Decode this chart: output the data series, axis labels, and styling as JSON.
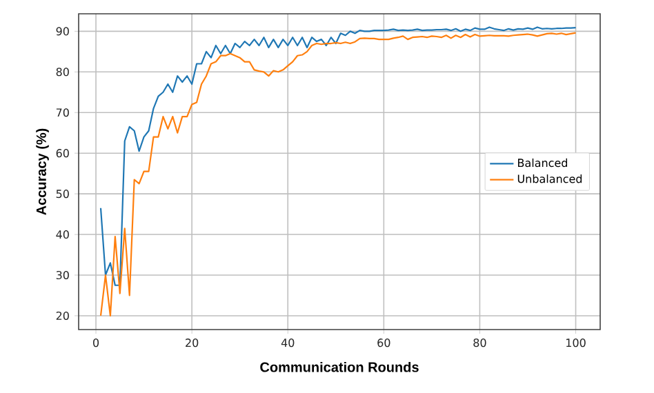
{
  "chart_data": {
    "type": "line",
    "xlabel": "Communication Rounds",
    "ylabel": "Accuracy (%)",
    "x": [
      1,
      2,
      3,
      4,
      5,
      6,
      7,
      8,
      9,
      10,
      11,
      12,
      13,
      14,
      15,
      16,
      17,
      18,
      19,
      20,
      21,
      22,
      23,
      24,
      25,
      26,
      27,
      28,
      29,
      30,
      31,
      32,
      33,
      34,
      35,
      36,
      37,
      38,
      39,
      40,
      41,
      42,
      43,
      44,
      45,
      46,
      47,
      48,
      49,
      50,
      51,
      52,
      53,
      54,
      55,
      56,
      57,
      58,
      59,
      60,
      61,
      62,
      63,
      64,
      65,
      66,
      67,
      68,
      69,
      70,
      71,
      72,
      73,
      74,
      75,
      76,
      77,
      78,
      79,
      80,
      81,
      82,
      83,
      84,
      85,
      86,
      87,
      88,
      89,
      90,
      91,
      92,
      93,
      94,
      95,
      96,
      97,
      98,
      99,
      100
    ],
    "series": [
      {
        "name": "Balanced",
        "color": "#1f77b4",
        "values": [
          46.5,
          30,
          33,
          27.5,
          27.5,
          63,
          66.5,
          65.5,
          60.5,
          64,
          65.5,
          71,
          74,
          75,
          77,
          75,
          79,
          77.5,
          79,
          77,
          82,
          82,
          85,
          83.5,
          86.5,
          84.5,
          86.5,
          84.5,
          87,
          86,
          87.5,
          86.5,
          88,
          86.5,
          88.5,
          86,
          88,
          86,
          88,
          86.5,
          88.5,
          86.5,
          88.5,
          86,
          88.5,
          87.5,
          88,
          86.5,
          88.5,
          87,
          89.5,
          89,
          90,
          89.5,
          90.2,
          90,
          90,
          90.2,
          90.2,
          90.2,
          90.3,
          90.5,
          90.2,
          90.3,
          90.2,
          90.3,
          90.5,
          90.2,
          90.3,
          90.3,
          90.4,
          90.4,
          90.5,
          90.2,
          90.6,
          90,
          90.5,
          90.2,
          90.8,
          90.5,
          90.5,
          91,
          90.6,
          90.4,
          90.2,
          90.6,
          90.3,
          90.6,
          90.5,
          90.8,
          90.5,
          91,
          90.6,
          90.7,
          90.6,
          90.7,
          90.7,
          90.8,
          90.8,
          90.9
        ]
      },
      {
        "name": "Unbalanced",
        "color": "#ff7f0e",
        "values": [
          20,
          30,
          20,
          39.5,
          25.5,
          41.5,
          25,
          53.5,
          52.5,
          55.5,
          55.5,
          64,
          64,
          69,
          66,
          69,
          65,
          69,
          69,
          72,
          72.5,
          77,
          79,
          82,
          82.5,
          84,
          84,
          84.5,
          84,
          83.5,
          82.5,
          82.5,
          80.5,
          80.2,
          80,
          79,
          80.3,
          80,
          80.5,
          81.5,
          82.5,
          84,
          84.2,
          85,
          86.5,
          87,
          86.8,
          87,
          87,
          87.2,
          87,
          87.3,
          87,
          87.4,
          88.2,
          88.3,
          88.2,
          88.2,
          88,
          88,
          88,
          88.3,
          88.5,
          88.8,
          88,
          88.5,
          88.6,
          88.7,
          88.5,
          88.8,
          88.7,
          88.5,
          89,
          88.3,
          89,
          88.5,
          89.2,
          88.6,
          89.2,
          88.8,
          88.9,
          89,
          88.9,
          88.9,
          88.9,
          88.8,
          89,
          89.1,
          89.2,
          89.3,
          89.1,
          88.8,
          89.1,
          89.4,
          89.5,
          89.3,
          89.5,
          89.2,
          89.4,
          89.6
        ]
      }
    ],
    "xlim": [
      -3.6,
      105.1
    ],
    "ylim": [
      16.6,
      94.3
    ],
    "xticks": [
      0,
      20,
      40,
      60,
      80,
      100
    ],
    "yticks": [
      20,
      30,
      40,
      50,
      60,
      70,
      80,
      90
    ],
    "grid": true,
    "legend": "right"
  }
}
